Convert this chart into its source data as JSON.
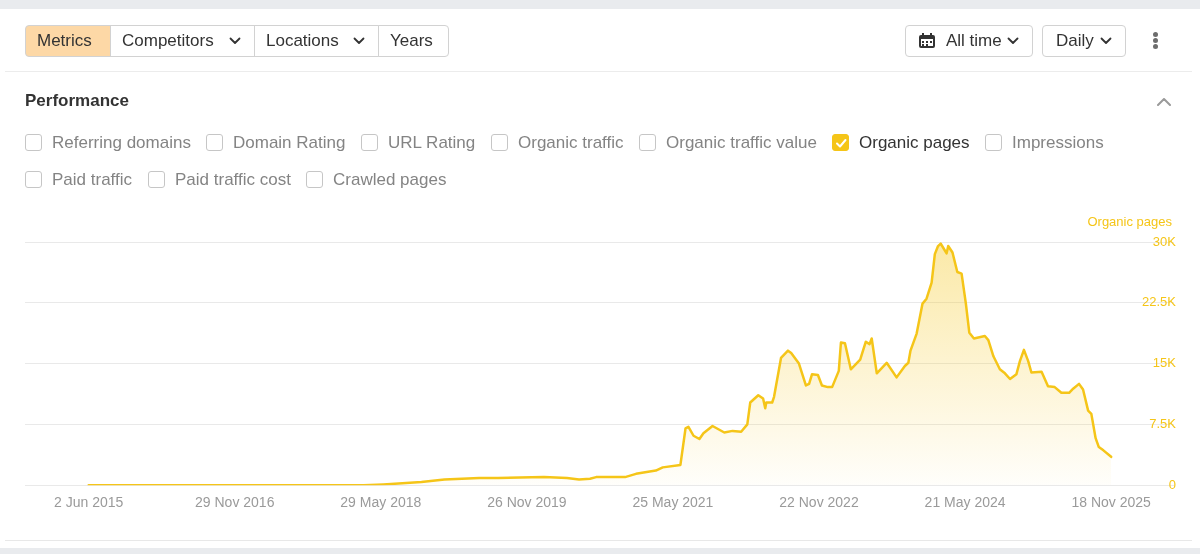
{
  "chart_data": {
    "type": "area",
    "title": "Performance",
    "ylabel": "Organic pages",
    "annotations": [
      "Metrics",
      "Competitors",
      "Locations",
      "Years",
      "All time",
      "Daily",
      "Referring domains",
      "Domain Rating",
      "URL Rating",
      "Organic traffic",
      "Organic traffic value",
      "Impressions",
      "Paid traffic",
      "Paid traffic cost",
      "Crawled pages"
    ],
    "legend": "top",
    "grid": "y",
    "xlim": [
      "2014-10-07",
      "2026-07-11"
    ],
    "xticks": [
      {
        "value": "2015-06-02",
        "label": "2 Jun 2015"
      },
      {
        "value": "2016-11-29",
        "label": "29 Nov 2016"
      },
      {
        "value": "2018-05-29",
        "label": "29 May 2018"
      },
      {
        "value": "2019-11-26",
        "label": "26 Nov 2019"
      },
      {
        "value": "2021-05-25",
        "label": "25 May 2021"
      },
      {
        "value": "2022-11-22",
        "label": "22 Nov 2022"
      },
      {
        "value": "2024-05-21",
        "label": "21 May 2024"
      },
      {
        "value": "2025-11-18",
        "label": "18 Nov 2025"
      }
    ],
    "ylim": [
      0,
      30000
    ],
    "yticks": [
      0,
      {
        "value": 7500,
        "label": "7.5K"
      },
      {
        "value": 15000,
        "label": "15K"
      },
      {
        "value": 22500,
        "label": "22.5K"
      },
      {
        "value": 30000,
        "label": "30K"
      }
    ],
    "x": [
      "2015-06-02",
      "2018-03-26",
      "2018-06-07",
      "2018-10-28",
      "2019-01-22",
      "2019-06-01",
      "2019-08-10",
      "2020-01-29",
      "2020-04-24",
      "2020-06-08",
      "2020-07-19",
      "2020-08-11",
      "2020-11-27",
      "2021-01-07",
      "2021-03-22",
      "2021-04-17",
      "2021-06-22",
      "2021-07-11",
      "2021-07-22",
      "2021-08-10",
      "2021-09-01",
      "2021-09-16",
      "2021-10-20",
      "2021-12-03",
      "2022-01-03",
      "2022-02-04",
      "2022-02-27",
      "2022-03-10",
      "2022-04-09",
      "2022-04-27",
      "2022-05-05",
      "2022-05-09",
      "2022-05-31",
      "2022-06-07",
      "2022-07-03",
      "2022-07-29",
      "2022-08-10",
      "2022-09-08",
      "2022-10-04",
      "2022-10-16",
      "2022-10-27",
      "2022-11-18",
      "2022-12-03",
      "2022-12-25",
      "2023-01-10",
      "2023-02-04",
      "2023-02-12",
      "2023-02-27",
      "2023-03-21",
      "2023-04-25",
      "2023-05-16",
      "2023-05-30",
      "2023-06-07",
      "2023-06-26",
      "2023-08-02",
      "2023-09-08",
      "2023-10-09",
      "2023-10-22",
      "2023-10-30",
      "2023-11-22",
      "2023-12-14",
      "2023-12-29",
      "2024-01-17",
      "2024-01-29",
      "2024-02-10",
      "2024-02-20",
      "2024-03-02",
      "2024-03-13",
      "2024-03-19",
      "2024-04-04",
      "2024-04-13",
      "2024-04-22",
      "2024-05-08",
      "2024-05-24",
      "2024-06-06",
      "2024-06-23",
      "2024-08-03",
      "2024-08-16",
      "2024-09-04",
      "2024-09-28",
      "2024-10-17",
      "2024-11-05",
      "2024-11-29",
      "2024-12-12",
      "2024-12-27",
      "2025-01-12",
      "2025-01-24",
      "2025-03-03",
      "2025-03-27",
      "2025-04-21",
      "2025-05-16",
      "2025-06-14",
      "2025-06-29",
      "2025-07-21",
      "2025-08-05",
      "2025-08-24",
      "2025-09-05",
      "2025-09-21",
      "2025-10-03",
      "2025-10-20",
      "2025-11-18"
    ],
    "series": [
      {
        "name": "Organic pages",
        "color": "#f5c518",
        "values": [
          0,
          0,
          100,
          400,
          700,
          900,
          900,
          1000,
          900,
          700,
          800,
          1000,
          1000,
          1400,
          1800,
          2200,
          2500,
          7000,
          7200,
          6100,
          5700,
          6400,
          7300,
          6500,
          6700,
          6600,
          7500,
          10200,
          11100,
          10700,
          9500,
          10200,
          10200,
          10900,
          15700,
          16600,
          16300,
          15000,
          12300,
          12500,
          13700,
          13600,
          12300,
          12100,
          12100,
          14100,
          17600,
          17500,
          14300,
          15500,
          17700,
          17400,
          18100,
          13800,
          15100,
          13300,
          14700,
          15100,
          16600,
          18700,
          22400,
          23000,
          25000,
          28500,
          29500,
          29800,
          29200,
          28600,
          29500,
          28700,
          27500,
          26300,
          26100,
          22400,
          18800,
          18100,
          18400,
          17900,
          15900,
          14300,
          13800,
          13100,
          13700,
          15300,
          16700,
          15300,
          13900,
          14000,
          12200,
          12100,
          11400,
          11400,
          11900,
          12500,
          11800,
          9200,
          8800,
          5800,
          4700,
          4300,
          3500
        ]
      }
    ]
  }
}
